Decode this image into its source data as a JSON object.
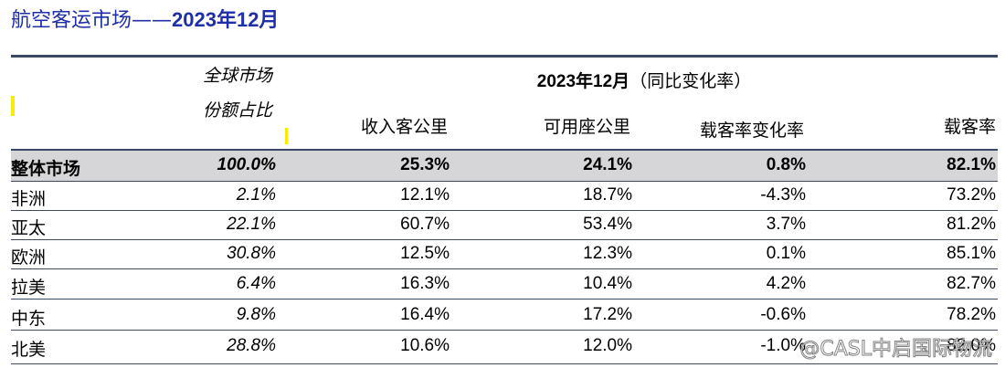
{
  "title": {
    "prefix": "航空客运市场——",
    "bold": "2023年12月"
  },
  "header": {
    "share_line1": "全球市场",
    "share_line2": "份额占比",
    "period_bold": "2023年12月",
    "period_rest": "（同比变化率）",
    "rpk": "收入客公里",
    "ask": "可用座公里",
    "plf_change": "载客率变化率",
    "plf": "载客率"
  },
  "rows": [
    {
      "name": "整体市场",
      "share": "100.0%",
      "rpk": "25.3%",
      "ask": "24.1%",
      "plf_change": "0.8%",
      "plf": "82.1%"
    },
    {
      "name": "非洲",
      "share": "2.1%",
      "rpk": "12.1%",
      "ask": "18.7%",
      "plf_change": "-4.3%",
      "plf": "73.2%"
    },
    {
      "name": "亚太",
      "share": "22.1%",
      "rpk": "60.7%",
      "ask": "53.4%",
      "plf_change": "3.7%",
      "plf": "81.2%"
    },
    {
      "name": "欧洲",
      "share": "30.8%",
      "rpk": "12.5%",
      "ask": "12.3%",
      "plf_change": "0.1%",
      "plf": "85.1%"
    },
    {
      "name": "拉美",
      "share": "6.4%",
      "rpk": "16.3%",
      "ask": "10.4%",
      "plf_change": "4.2%",
      "plf": "82.7%"
    },
    {
      "name": "中东",
      "share": "9.8%",
      "rpk": "16.4%",
      "ask": "17.2%",
      "plf_change": "-0.6%",
      "plf": "78.2%"
    },
    {
      "name": "北美",
      "share": "28.8%",
      "rpk": "10.6%",
      "ask": "12.0%",
      "plf_change": "-1.0%",
      "plf": "82.0%"
    }
  ],
  "watermark": "@CASL中启国际物流",
  "colors": {
    "title": "#1f2fa8",
    "rule": "#3a4a66",
    "total_row_bg": "#d6d6d8",
    "highlight": "#f5ee00"
  }
}
